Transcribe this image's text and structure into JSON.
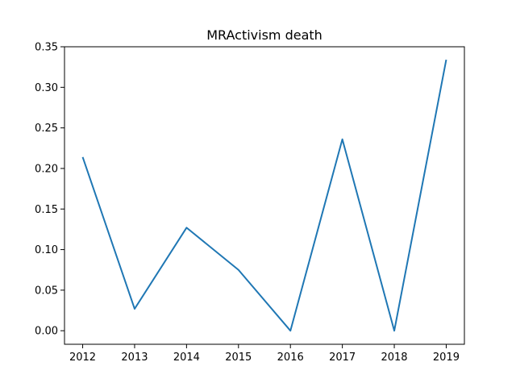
{
  "chart_data": {
    "type": "line",
    "title": "MRActivism death",
    "xlabel": "",
    "ylabel": "",
    "x": [
      2012,
      2013,
      2014,
      2015,
      2016,
      2017,
      2018,
      2019
    ],
    "series": [
      {
        "values": [
          0.214,
          0.027,
          0.127,
          0.075,
          0.0,
          0.236,
          0.0,
          0.334
        ],
        "color": "#1f77b4"
      }
    ],
    "xlim": [
      2011.65,
      2019.35
    ],
    "ylim": [
      -0.0167,
      0.35
    ],
    "xticks": [
      "2012",
      "2013",
      "2014",
      "2015",
      "2016",
      "2017",
      "2018",
      "2019"
    ],
    "yticks": [
      "0.00",
      "0.05",
      "0.10",
      "0.15",
      "0.20",
      "0.25",
      "0.30",
      "0.35"
    ],
    "grid": false,
    "legend": "none"
  }
}
